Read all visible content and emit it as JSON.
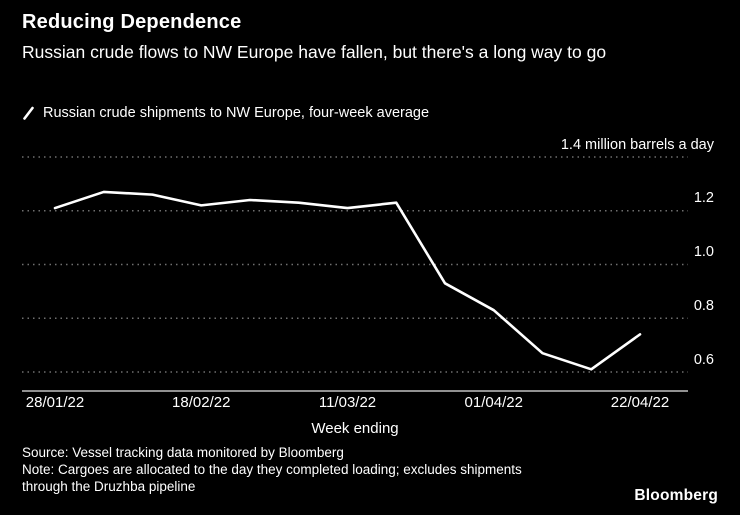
{
  "colors": {
    "background": "#000000",
    "text": "#ffffff",
    "line": "#ffffff",
    "grid": "#6f6f6f",
    "axis": "#e8e8e8"
  },
  "header": {
    "title": "Reducing Dependence",
    "subtitle": "Russian crude flows to NW Europe have fallen, but there's a long way to go"
  },
  "legend": {
    "label": "Russian crude shipments to NW Europe, four-week average"
  },
  "chart_data": {
    "type": "line",
    "title": "Reducing Dependence",
    "subtitle": "Russian crude flows to NW Europe have fallen, but there's a long way to go",
    "x": [
      "28/01/22",
      "04/02/22",
      "11/02/22",
      "18/02/22",
      "25/02/22",
      "04/03/22",
      "11/03/22",
      "18/03/22",
      "25/03/22",
      "01/04/22",
      "08/04/22",
      "15/04/22",
      "22/04/22"
    ],
    "series": [
      {
        "name": "Russian crude shipments to NW Europe, four-week average",
        "values": [
          1.21,
          1.27,
          1.26,
          1.22,
          1.24,
          1.23,
          1.21,
          1.23,
          0.93,
          0.83,
          0.67,
          0.61,
          0.74
        ]
      }
    ],
    "xlabel": "Week ending",
    "ylabel": "million barrels a day",
    "ylim": [
      0.53,
      1.45
    ],
    "yticks": [
      1.4,
      1.2,
      1.0,
      0.8,
      0.6
    ],
    "ytick_labels": [
      "1.4 million barrels a day",
      "1.2",
      "1.0",
      "0.8",
      "0.6"
    ],
    "xticks": [
      "28/01/22",
      "18/02/22",
      "11/03/22",
      "01/04/22",
      "22/04/22"
    ],
    "grid": "horizontal-dotted",
    "legend_position": "top-left"
  },
  "footer": {
    "source": "Source: Vessel tracking data monitored by Bloomberg",
    "note": "Note: Cargoes are allocated to the day they completed loading; excludes shipments through the Druzhba pipeline",
    "brand": "Bloomberg"
  }
}
